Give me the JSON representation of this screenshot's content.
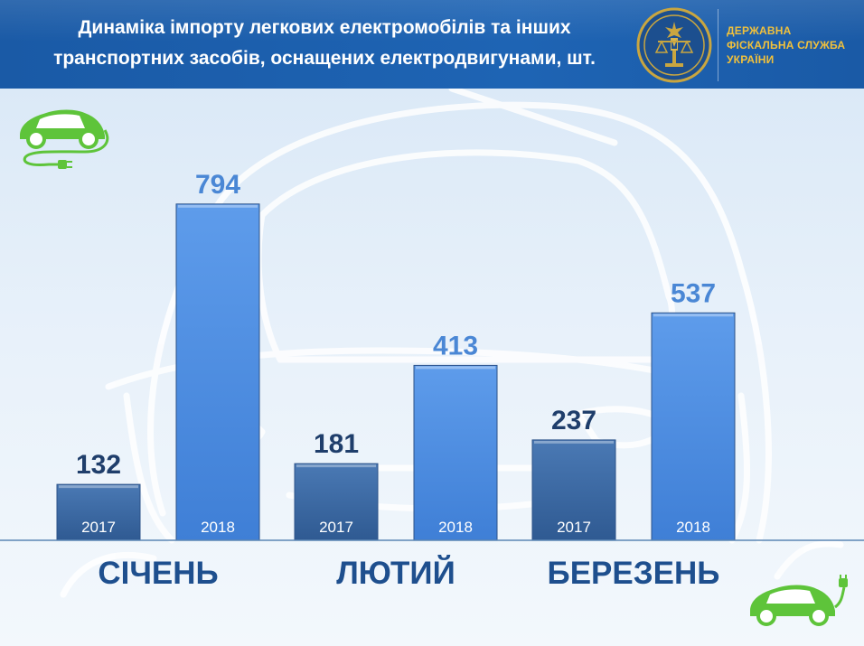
{
  "header": {
    "title_line1": "Динаміка імпорту легкових електромобілів та інших",
    "title_line2": "транспортних засобів, оснащених електродвигунами, шт.",
    "agency_line1": "ДЕРЖАВНА",
    "agency_line2": "ФІСКАЛЬНА СЛУЖБА",
    "agency_line3": "УКРАЇНИ"
  },
  "icons": {
    "emblem": "fiscal-service-emblem-icon",
    "ev_top_left": "electric-car-plug-icon",
    "ev_bottom_right": "electric-car-plug-icon"
  },
  "colors": {
    "header": "#1e64b4",
    "agency_text": "#f1c13c",
    "bar_2017": "#3d6aa4",
    "bar_2018": "#4f8fe0",
    "value_2017": "#1f3e6b",
    "value_2018": "#4a87d5",
    "month_text": "#1e4f8e",
    "ev_green": "#5ec43a"
  },
  "chart_data": {
    "type": "bar",
    "categories": [
      "СІЧЕНЬ",
      "ЛЮТИЙ",
      "БЕРЕЗЕНЬ"
    ],
    "series": [
      {
        "name": "2017",
        "values": [
          132,
          181,
          237
        ]
      },
      {
        "name": "2018",
        "values": [
          794,
          413,
          537
        ]
      }
    ],
    "title": "Динаміка імпорту легкових електромобілів та інших транспортних засобів, оснащених електродвигунами, шт.",
    "xlabel": "",
    "ylabel": "",
    "ylim": [
      0,
      800
    ],
    "grid": false,
    "legend": "none",
    "data_labels": true
  }
}
